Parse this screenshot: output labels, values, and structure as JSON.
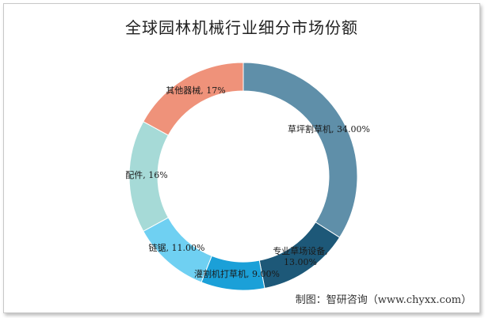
{
  "chart_data": {
    "type": "pie",
    "variant": "donut",
    "title": "全球园林机械行业细分市场份额",
    "slices": [
      {
        "name": "草坪割草机",
        "value": 34.0,
        "label": "草坪割草机, 34.00%",
        "color": "#5f8fa9"
      },
      {
        "name": "专业草场设备",
        "value": 13.0,
        "label_lines": [
          "专业草场设备,",
          "13.00%"
        ],
        "color": "#1d5878"
      },
      {
        "name": "灌割机打草机",
        "value": 9.0,
        "label": "灌割机打草机, 9.00%",
        "color": "#1ba0d8"
      },
      {
        "name": "链锯",
        "value": 11.0,
        "label": "链锯, 11.00%",
        "color": "#6fd0f2"
      },
      {
        "name": "配件",
        "value": 16.0,
        "label": "配件, 16%",
        "color": "#a6dad7"
      },
      {
        "name": "其他器械",
        "value": 17.0,
        "label": "其他器械, 17%",
        "color": "#ef927a"
      }
    ],
    "legend": "none"
  },
  "source": "制图：智研咨询（www.chyxx.com）"
}
